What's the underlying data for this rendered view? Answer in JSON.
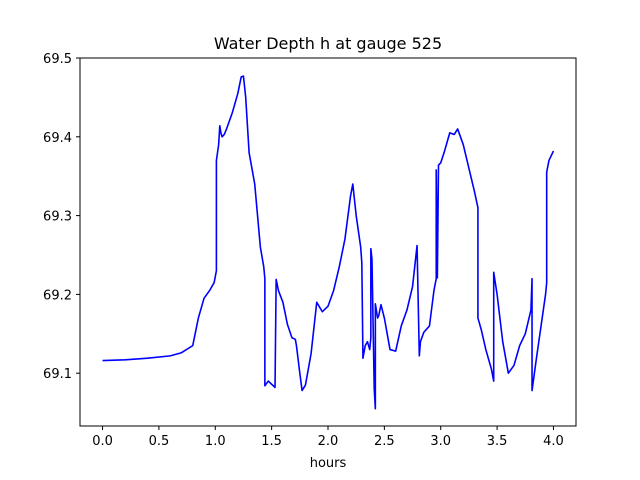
{
  "chart_data": {
    "type": "line",
    "title": "Water Depth h at gauge 525",
    "xlabel": "hours",
    "ylabel": "",
    "xlim": [
      -0.2,
      4.2
    ],
    "ylim": [
      69.033,
      69.5
    ],
    "xticks": [
      0.0,
      0.5,
      1.0,
      1.5,
      2.0,
      2.5,
      3.0,
      3.5,
      4.0
    ],
    "xtick_labels": [
      "0.0",
      "0.5",
      "1.0",
      "1.5",
      "2.0",
      "2.5",
      "3.0",
      "3.5",
      "4.0"
    ],
    "yticks": [
      69.1,
      69.2,
      69.3,
      69.4,
      69.5
    ],
    "ytick_labels": [
      "69.1",
      "69.2",
      "69.3",
      "69.4",
      "69.5"
    ],
    "grid": false,
    "series": [
      {
        "color": "#0000ff",
        "x": [
          0.0,
          0.2,
          0.4,
          0.6,
          0.7,
          0.8,
          0.85,
          0.9,
          0.95,
          0.99,
          1.01,
          1.01,
          1.03,
          1.04,
          1.05,
          1.06,
          1.08,
          1.1,
          1.15,
          1.2,
          1.23,
          1.25,
          1.27,
          1.3,
          1.35,
          1.4,
          1.43,
          1.44,
          1.44,
          1.47,
          1.5,
          1.53,
          1.54,
          1.56,
          1.6,
          1.64,
          1.68,
          1.71,
          1.72,
          1.75,
          1.77,
          1.8,
          1.85,
          1.9,
          1.95,
          2.0,
          2.05,
          2.1,
          2.15,
          2.2,
          2.22,
          2.25,
          2.29,
          2.3,
          2.31,
          2.33,
          2.35,
          2.37,
          2.38,
          2.38,
          2.39,
          2.41,
          2.42,
          2.42,
          2.44,
          2.45,
          2.47,
          2.5,
          2.55,
          2.6,
          2.65,
          2.7,
          2.75,
          2.79,
          2.81,
          2.82,
          2.85,
          2.9,
          2.94,
          2.96,
          2.96,
          2.97,
          2.98,
          2.98,
          3.0,
          3.03,
          3.08,
          3.12,
          3.15,
          3.2,
          3.25,
          3.3,
          3.33,
          3.33,
          3.36,
          3.4,
          3.45,
          3.47,
          3.47,
          3.5,
          3.55,
          3.6,
          3.65,
          3.7,
          3.75,
          3.8,
          3.81,
          3.81,
          3.85,
          3.9,
          3.93,
          3.94,
          3.94,
          3.96,
          4.0
        ],
        "y": [
          69.116,
          69.117,
          69.119,
          69.122,
          69.126,
          69.135,
          69.17,
          69.195,
          69.205,
          69.215,
          69.23,
          69.37,
          69.39,
          69.414,
          69.405,
          69.4,
          69.403,
          69.41,
          69.43,
          69.455,
          69.476,
          69.477,
          69.45,
          69.38,
          69.34,
          69.26,
          69.235,
          69.22,
          69.084,
          69.09,
          69.086,
          69.082,
          69.219,
          69.205,
          69.19,
          69.162,
          69.145,
          69.143,
          69.135,
          69.1,
          69.078,
          69.085,
          69.125,
          69.19,
          69.178,
          69.185,
          69.205,
          69.235,
          69.27,
          69.325,
          69.34,
          69.3,
          69.26,
          69.24,
          69.119,
          69.135,
          69.14,
          69.13,
          69.145,
          69.258,
          69.245,
          69.08,
          69.055,
          69.188,
          69.17,
          69.173,
          69.187,
          69.17,
          69.13,
          69.128,
          69.16,
          69.18,
          69.21,
          69.262,
          69.122,
          69.14,
          69.152,
          69.16,
          69.205,
          69.22,
          69.358,
          69.221,
          69.36,
          69.364,
          69.367,
          69.38,
          69.405,
          69.403,
          69.41,
          69.39,
          69.36,
          69.33,
          69.31,
          69.17,
          69.155,
          69.13,
          69.105,
          69.09,
          69.228,
          69.2,
          69.14,
          69.1,
          69.11,
          69.135,
          69.15,
          69.18,
          69.22,
          69.078,
          69.12,
          69.17,
          69.2,
          69.215,
          69.355,
          69.37,
          69.382
        ]
      }
    ]
  }
}
